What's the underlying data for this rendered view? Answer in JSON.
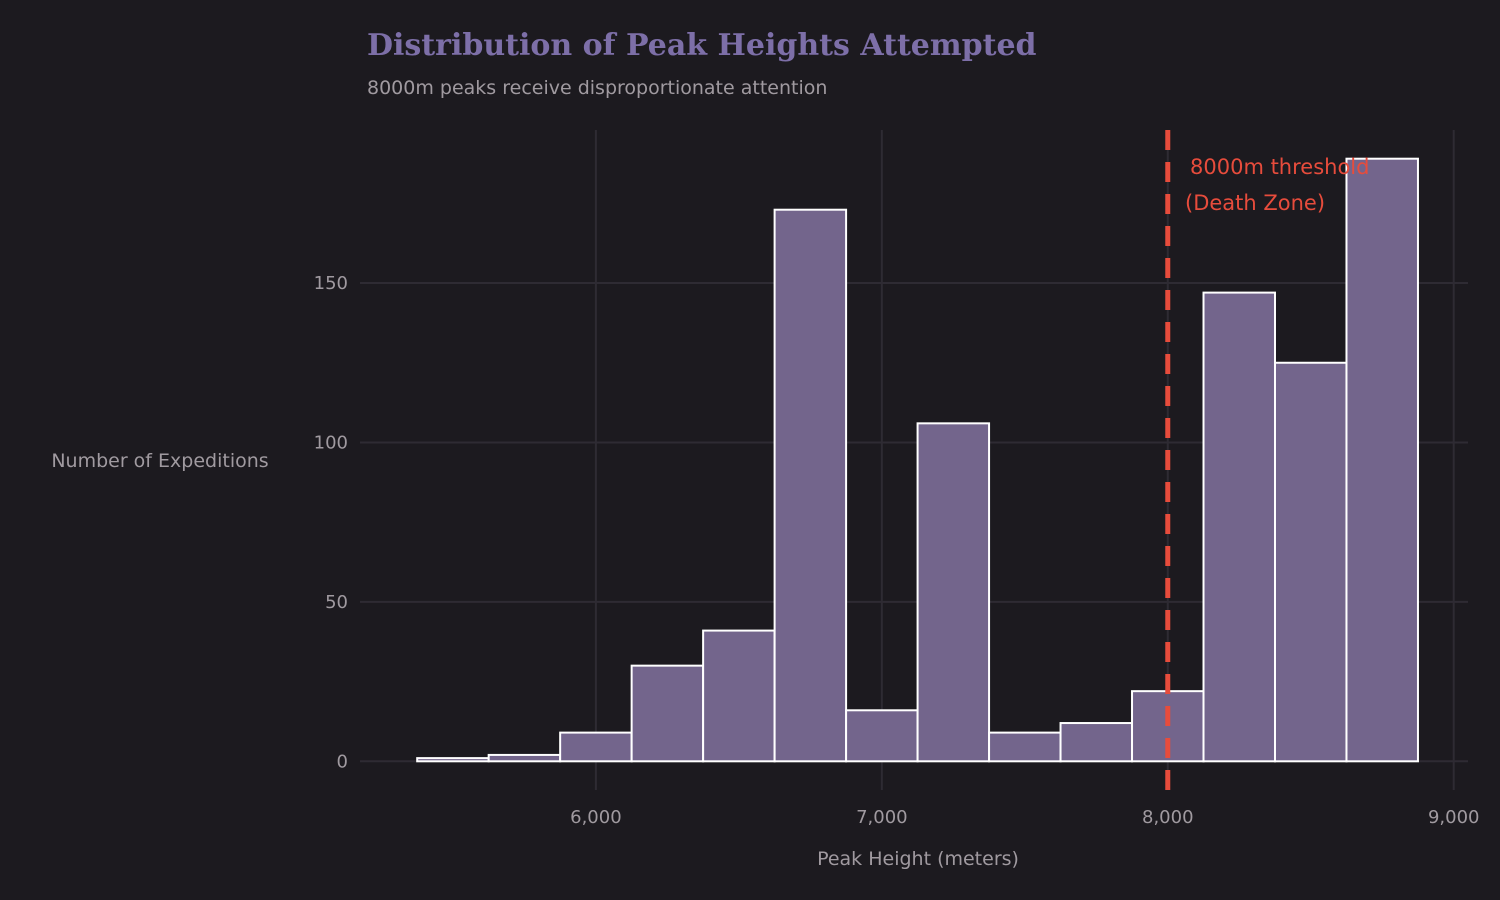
{
  "chart_data": {
    "type": "bar",
    "title": "Distribution of Peak Heights Attempted",
    "subtitle": "8000m peaks receive disproportionate attention",
    "xlabel": "Peak Height (meters)",
    "ylabel": "Number of Expeditions",
    "bin_edges": [
      5375,
      5625,
      5875,
      6125,
      6375,
      6625,
      6875,
      7125,
      7375,
      7625,
      7875,
      8125,
      8375,
      8625,
      8875
    ],
    "values": [
      1,
      2,
      9,
      30,
      41,
      173,
      16,
      106,
      9,
      12,
      22,
      147,
      125,
      189
    ],
    "xlim": [
      5175,
      9050
    ],
    "ylim": [
      -9,
      198
    ],
    "xticks": [
      6000,
      7000,
      8000,
      9000
    ],
    "xtick_labels": [
      "6,000",
      "7,000",
      "8,000",
      "9,000"
    ],
    "yticks": [
      0,
      50,
      100,
      150
    ],
    "ytick_labels": [
      "0",
      "50",
      "100",
      "150"
    ],
    "grid": true,
    "reference_line": {
      "x": 8000,
      "style": "dashed",
      "color": "#e74c3c"
    },
    "annotation": {
      "line1": "8000m threshold",
      "line2": "(Death Zone)"
    },
    "colors": {
      "background": "#1c1a1f",
      "bar_fill": "#73658c",
      "bar_edge": "#ffffff",
      "title": "#7d6fa8",
      "grid": "#2e2b33"
    }
  }
}
